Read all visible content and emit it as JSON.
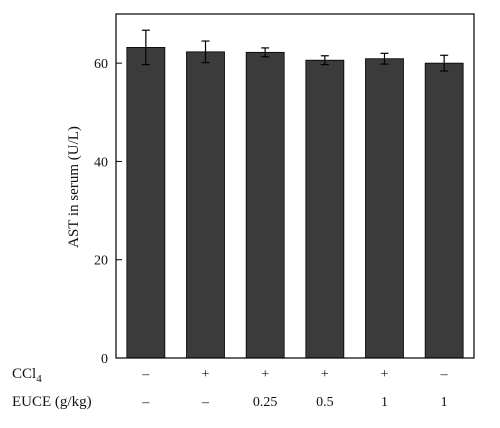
{
  "chart_data": {
    "type": "bar",
    "ylabel": "AST in serum (U/L)",
    "ylim": [
      0,
      70
    ],
    "yticks": [
      0,
      20,
      40,
      60
    ],
    "bar_color": "#3b3b3b",
    "bars": [
      {
        "value": 63.2,
        "error": 3.5
      },
      {
        "value": 62.3,
        "error": 2.2
      },
      {
        "value": 62.2,
        "error": 0.9
      },
      {
        "value": 60.6,
        "error": 0.9
      },
      {
        "value": 60.9,
        "error": 1.1
      },
      {
        "value": 60.0,
        "error": 1.6
      }
    ],
    "group_rows": [
      {
        "label_main": "CCl",
        "label_sub": "4",
        "values": [
          "–",
          "+",
          "+",
          "+",
          "+",
          "–"
        ]
      },
      {
        "label_main": "EUCE (g/kg)",
        "label_sub": "",
        "values": [
          "–",
          "–",
          "0.25",
          "0.5",
          "1",
          "1"
        ]
      }
    ]
  }
}
